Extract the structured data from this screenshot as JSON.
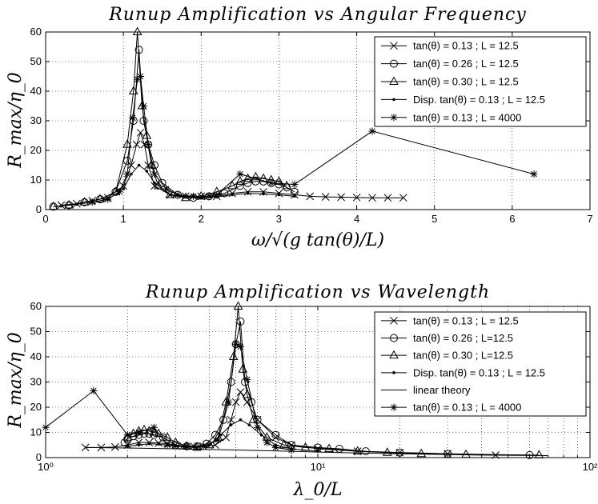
{
  "chart_data": [
    {
      "type": "line",
      "title": "Runup Amplification vs Angular Frequency",
      "xlabel": "ω/√(g tan(θ)/L)",
      "ylabel": "R_max/η_0",
      "xscale": "linear",
      "xlim": [
        0,
        7
      ],
      "ylim": [
        0,
        60
      ],
      "xticks": [
        0,
        1,
        2,
        3,
        4,
        5,
        6,
        7
      ],
      "xtick_labels": [
        "0",
        "1",
        "2",
        "3",
        "4",
        "5",
        "6",
        "7"
      ],
      "yticks": [
        0,
        10,
        20,
        30,
        40,
        50,
        60
      ],
      "ytick_labels": [
        "0",
        "10",
        "20",
        "30",
        "40",
        "50",
        "60"
      ],
      "grid": true,
      "legend_position": "top-right",
      "series": [
        {
          "name": "tan(θ) = 0.13 ; L = 12.5",
          "marker": "x",
          "x": [
            0.2,
            0.4,
            0.6,
            0.8,
            1.0,
            1.1,
            1.17,
            1.22,
            1.27,
            1.32,
            1.4,
            1.6,
            1.8,
            2.0,
            2.2,
            2.4,
            2.6,
            2.8,
            3.0,
            3.2,
            3.4,
            3.6,
            3.8,
            4.0,
            4.2,
            4.4,
            4.6
          ],
          "y": [
            1.5,
            2,
            3,
            4,
            8,
            15,
            22,
            26,
            22,
            15,
            8,
            5,
            4.5,
            4.5,
            4.5,
            5.5,
            6,
            6,
            5.5,
            5,
            4.5,
            4.3,
            4.2,
            4.1,
            4,
            4,
            4
          ]
        },
        {
          "name": "tan(θ) = 0.26 ; L = 12.5",
          "marker": "o",
          "x": [
            0.1,
            0.3,
            0.5,
            0.7,
            0.9,
            1.05,
            1.13,
            1.2,
            1.26,
            1.32,
            1.4,
            1.5,
            1.7,
            1.9,
            2.1,
            2.3,
            2.5,
            2.6,
            2.7,
            2.8,
            2.9,
            3.0,
            3.1,
            3.2
          ],
          "y": [
            1,
            1.5,
            2.5,
            3.5,
            6,
            16.5,
            30,
            54,
            30,
            22,
            15,
            9,
            5,
            4,
            4.5,
            5.5,
            8,
            9,
            9.5,
            9.5,
            9,
            8.5,
            7.5,
            6
          ]
        },
        {
          "name": "tan(θ) = 0.30 ; L = 12.5",
          "marker": "triangle",
          "x": [
            0.1,
            0.3,
            0.5,
            0.7,
            0.9,
            1.05,
            1.13,
            1.18,
            1.24,
            1.3,
            1.36,
            1.45,
            1.6,
            1.8,
            2.0,
            2.2,
            2.4,
            2.5,
            2.6,
            2.7,
            2.8,
            2.9,
            3.0,
            3.1
          ],
          "y": [
            1,
            1.5,
            2.5,
            3.5,
            6,
            22,
            40,
            60,
            35,
            25,
            15,
            8,
            5,
            4,
            4.5,
            6,
            8,
            9.5,
            10.5,
            11,
            10.5,
            10,
            9.5,
            8
          ]
        },
        {
          "name": "Disp. tan(θ) = 0.13 ; L = 12.5",
          "marker": "dot",
          "x": [
            0.2,
            0.4,
            0.6,
            0.8,
            1.0,
            1.1,
            1.2,
            1.3,
            1.4,
            1.6,
            1.8,
            2.0,
            2.2,
            2.4,
            2.6,
            2.8,
            3.0,
            3.2
          ],
          "y": [
            1.2,
            1.8,
            2.5,
            3.5,
            7,
            12,
            15,
            13,
            9,
            5,
            4.2,
            4,
            4.3,
            5,
            5.5,
            5.3,
            5,
            4.5
          ]
        },
        {
          "name": "tan(θ) = 0.13 ; L = 4000",
          "marker": "star",
          "x": [
            0.6,
            0.8,
            0.95,
            1.05,
            1.12,
            1.18,
            1.22,
            1.26,
            1.32,
            1.4,
            1.55,
            1.7,
            1.9,
            2.1,
            2.2,
            2.5,
            2.9,
            3.2,
            4.2,
            6.28
          ],
          "y": [
            2.5,
            3.5,
            6,
            12,
            31,
            44,
            45,
            35,
            22,
            12,
            7,
            5,
            4.5,
            4.5,
            5,
            12,
            9,
            8.5,
            26.5,
            12
          ]
        }
      ]
    },
    {
      "type": "line",
      "title": "Runup Amplification vs Wavelength",
      "xlabel": "λ_0/L",
      "ylabel": "R_max/η_0",
      "xscale": "log",
      "xlim": [
        1,
        100
      ],
      "ylim": [
        0,
        60
      ],
      "xticks": [
        1,
        10,
        100
      ],
      "xtick_labels": [
        "10⁰",
        "10¹",
        "10²"
      ],
      "yticks": [
        0,
        10,
        20,
        30,
        40,
        50,
        60
      ],
      "ytick_labels": [
        "0",
        "10",
        "20",
        "30",
        "40",
        "50",
        "60"
      ],
      "grid": true,
      "legend_position": "top-right",
      "series": [
        {
          "name": "tan(θ) = 0.13 ; L = 12.5",
          "marker": "x",
          "x": [
            1.4,
            1.6,
            1.8,
            2.0,
            2.2,
            2.4,
            2.6,
            2.8,
            3.0,
            3.2,
            3.5,
            3.8,
            4.2,
            4.6,
            4.8,
            5.0,
            5.2,
            5.5,
            6.0,
            7.0,
            8.0,
            10.0,
            14.0,
            20.0,
            30.0,
            45.0
          ],
          "y": [
            4,
            4,
            4.2,
            5,
            6,
            6,
            5.8,
            5.5,
            5,
            4.6,
            4.5,
            4.5,
            5,
            8,
            15,
            22,
            26,
            22,
            15,
            8,
            5,
            3.5,
            2.5,
            2,
            1.5,
            1
          ]
        },
        {
          "name": "tan(θ) = 0.26 ; L=12.5",
          "marker": "o",
          "x": [
            1.95,
            2.0,
            2.1,
            2.2,
            2.3,
            2.4,
            2.5,
            2.7,
            3.0,
            3.3,
            3.6,
            3.9,
            4.2,
            4.5,
            4.8,
            5.0,
            5.2,
            5.4,
            5.7,
            6.0,
            7.0,
            8.0,
            10.0,
            12.0,
            15.0,
            20.0,
            30.0,
            60.0
          ],
          "y": [
            6,
            7.5,
            8.5,
            9,
            9.5,
            9.5,
            9,
            8,
            5,
            4.5,
            4.5,
            5.5,
            9,
            15,
            30,
            45,
            54,
            30,
            22,
            15,
            9,
            5,
            4,
            3.5,
            2.5,
            2,
            1.5,
            1
          ]
        },
        {
          "name": "tan(θ) = 0.30 ; L=12.5",
          "marker": "triangle",
          "x": [
            2.0,
            2.1,
            2.2,
            2.3,
            2.4,
            2.5,
            2.6,
            2.8,
            3.0,
            3.3,
            3.6,
            4.0,
            4.3,
            4.6,
            4.9,
            5.1,
            5.3,
            5.5,
            5.8,
            6.5,
            7.5,
            9.0,
            11.0,
            14.0,
            18.0,
            24.0,
            35.0,
            65.0
          ],
          "y": [
            8,
            9.5,
            10.5,
            11,
            10.5,
            10,
            9.5,
            8,
            6,
            4.5,
            4,
            5,
            8,
            22,
            40,
            60,
            35,
            25,
            15,
            8,
            5,
            4,
            3.5,
            2.5,
            2,
            1.5,
            1.2,
            1
          ]
        },
        {
          "name": "Disp. tan(θ) = 0.13 ; L = 12.5",
          "marker": "dot",
          "x": [
            2.0,
            2.2,
            2.4,
            2.6,
            2.8,
            3.0,
            3.3,
            3.6,
            4.0,
            4.4,
            4.8,
            5.2,
            5.6,
            6.2,
            7.0,
            8.0,
            10.0
          ],
          "y": [
            4.5,
            5,
            5.5,
            5.3,
            5,
            4.5,
            4.2,
            4,
            5,
            9,
            13,
            15,
            13,
            9,
            5,
            3.5,
            2.5
          ]
        },
        {
          "name": "linear theory",
          "marker": "none",
          "x": [
            1.4,
            2.0,
            3.0,
            5.0,
            8.0,
            12.0,
            20.0,
            40.0,
            70.0
          ],
          "y": [
            4,
            3.8,
            3.5,
            3,
            2.5,
            2,
            1.5,
            1,
            0.8
          ]
        },
        {
          "name": "tan(θ) = 0.13 ; L = 4000",
          "marker": "star",
          "x": [
            1.0,
            1.5,
            2.0,
            2.2,
            2.5,
            2.8,
            3.3,
            3.8,
            4.3,
            4.7,
            5.0,
            5.2,
            5.5,
            6.0,
            6.5,
            7.0,
            8.0
          ],
          "y": [
            12,
            26.5,
            9,
            10,
            12,
            5,
            4.5,
            4.5,
            7,
            22,
            45,
            44,
            31,
            12,
            6,
            4,
            3
          ]
        }
      ]
    }
  ]
}
